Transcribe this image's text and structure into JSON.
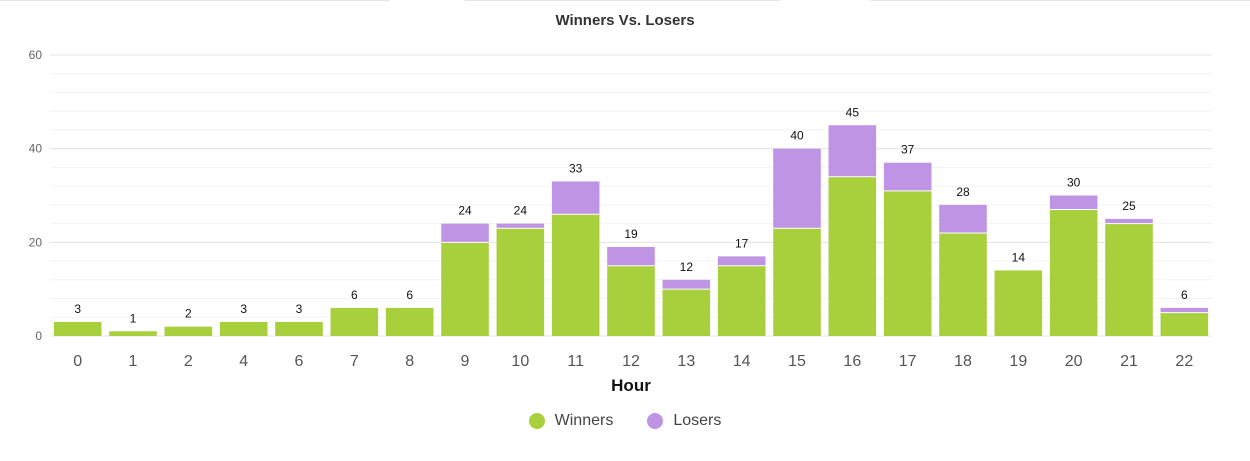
{
  "chart_data": {
    "type": "bar",
    "stacked": true,
    "title": "Winners Vs. Losers",
    "xlabel": "Hour",
    "ylabel": "",
    "ylim": [
      0,
      60
    ],
    "yticks": [
      0,
      20,
      40,
      60
    ],
    "categories": [
      "0",
      "1",
      "2",
      "4",
      "6",
      "7",
      "8",
      "9",
      "10",
      "11",
      "12",
      "13",
      "14",
      "15",
      "16",
      "17",
      "18",
      "19",
      "20",
      "21",
      "22"
    ],
    "series": [
      {
        "name": "Winners",
        "color": "#a8cf3c",
        "values": [
          3,
          1,
          2,
          3,
          3,
          6,
          6,
          20,
          23,
          26,
          15,
          10,
          15,
          23,
          34,
          31,
          22,
          14,
          27,
          24,
          5
        ]
      },
      {
        "name": "Losers",
        "color": "#bf94e4",
        "values": [
          0,
          0,
          0,
          0,
          0,
          0,
          0,
          4,
          1,
          7,
          4,
          2,
          2,
          17,
          11,
          6,
          6,
          0,
          3,
          1,
          1
        ]
      }
    ],
    "totals": [
      3,
      1,
      2,
      3,
      3,
      6,
      6,
      24,
      24,
      33,
      19,
      12,
      17,
      40,
      45,
      37,
      28,
      14,
      30,
      25,
      6
    ],
    "grid": true,
    "legend_position": "bottom-center"
  }
}
